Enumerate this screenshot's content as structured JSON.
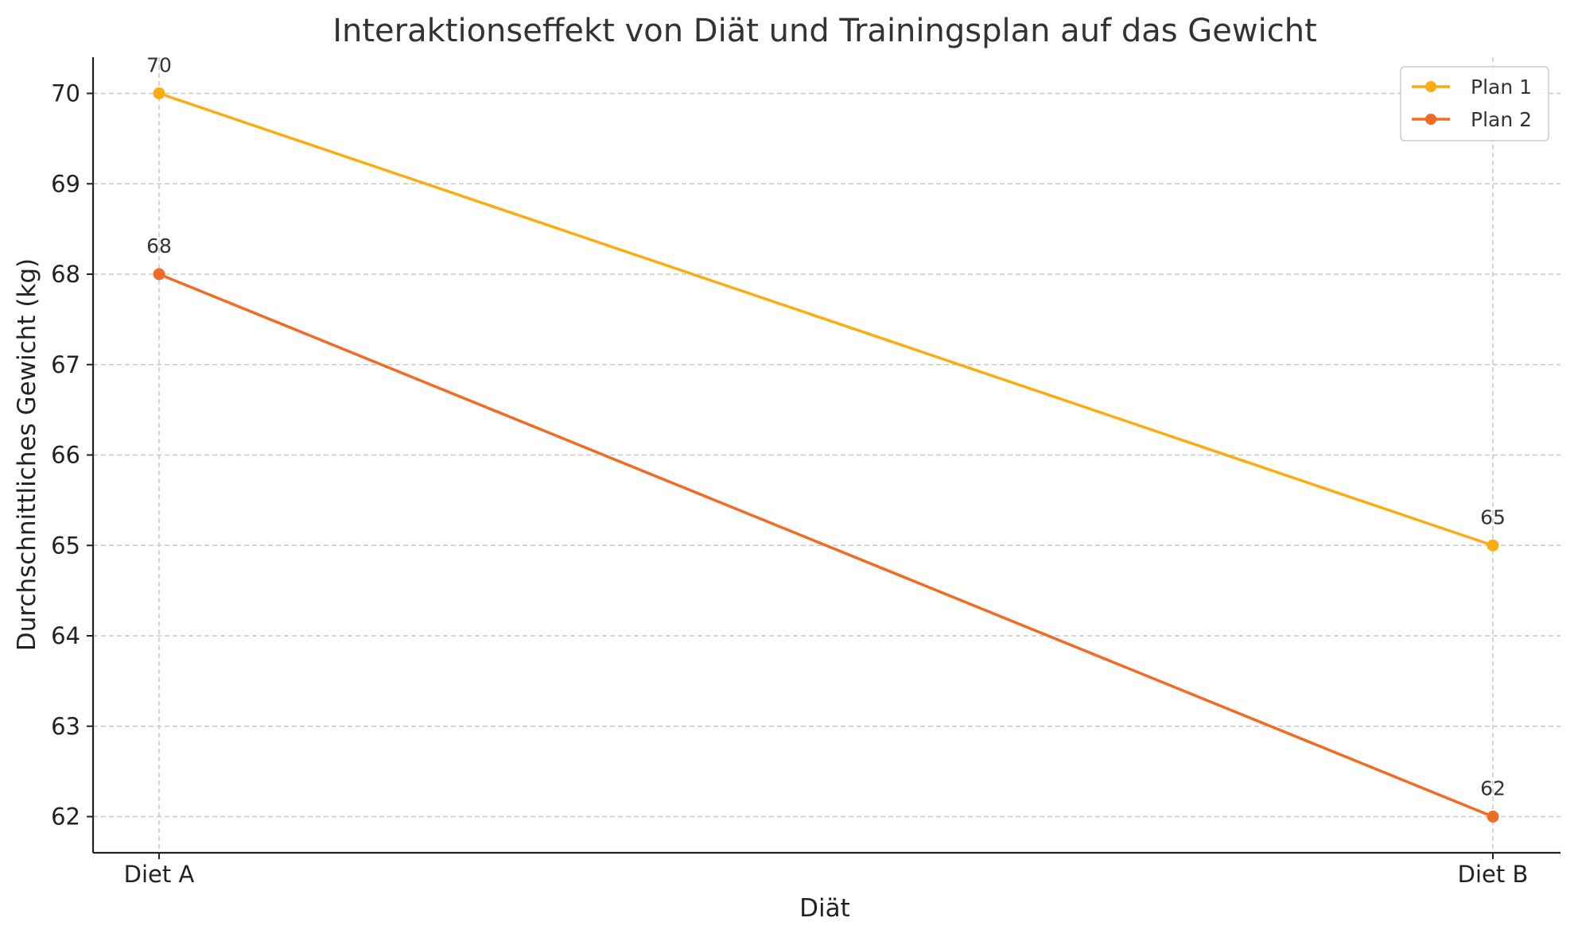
{
  "chart_data": {
    "type": "line",
    "title": "Interaktionseffekt von Diät und Trainingsplan auf das Gewicht",
    "xlabel": "Diät",
    "ylabel": "Durchschnittliches Gewicht (kg)",
    "categories": [
      "Diet A",
      "Diet B"
    ],
    "ylim": [
      61.6,
      70.4
    ],
    "yticks": [
      62,
      63,
      64,
      65,
      66,
      67,
      68,
      69,
      70
    ],
    "grid": true,
    "legend_position": "top-right",
    "series": [
      {
        "name": "Plan 1",
        "values": [
          70,
          65
        ],
        "color": "#fbac12"
      },
      {
        "name": "Plan 2",
        "values": [
          68,
          62
        ],
        "color": "#f06c25"
      }
    ]
  }
}
